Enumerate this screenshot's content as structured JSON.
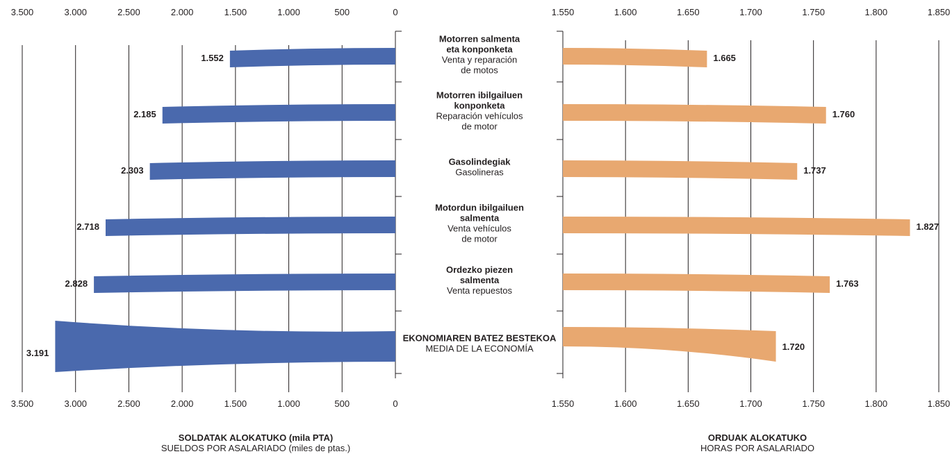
{
  "chart_data": [
    {
      "type": "bar",
      "orientation": "horizontal",
      "direction": "right-to-left",
      "xlabel_line1": "SOLDATAK ALOKATUKO (mila PTA)",
      "xlabel_line2": "SUELDOS POR ASALARIADO (miles de ptas.)",
      "xlim": [
        0,
        3500
      ],
      "ticks": [
        3500,
        3000,
        2500,
        2000,
        1500,
        1000,
        500,
        0
      ],
      "tick_labels": [
        "3.500",
        "3.000",
        "2.500",
        "2.000",
        "1.500",
        "1.000",
        "500",
        "0"
      ],
      "color": "#4a69ad",
      "values": [
        1552,
        2185,
        2303,
        2718,
        2828,
        3191
      ],
      "value_labels": [
        "1.552",
        "2.185",
        "2.303",
        "2.718",
        "2.828",
        "3.191"
      ]
    },
    {
      "type": "bar",
      "orientation": "horizontal",
      "direction": "left-to-right",
      "xlabel_line1": "ORDUAK ALOKATUKO",
      "xlabel_line2": "HORAS POR ASALARIADO",
      "xlim": [
        1550,
        1850
      ],
      "ticks": [
        1550,
        1600,
        1650,
        1700,
        1750,
        1800,
        1850
      ],
      "tick_labels": [
        "1.550",
        "1.600",
        "1.650",
        "1.700",
        "1.750",
        "1.800",
        "1.850"
      ],
      "color": "#e8a870",
      "values": [
        1665,
        1760,
        1737,
        1827,
        1763,
        1720
      ],
      "value_labels": [
        "1.665",
        "1.760",
        "1.737",
        "1.827",
        "1.763",
        "1.720"
      ]
    }
  ],
  "categories": [
    {
      "bold": [
        "Motorren salmenta",
        "eta konponketa"
      ],
      "normal": [
        "Venta y reparación",
        "de motos"
      ]
    },
    {
      "bold": [
        "Motorren ibilgailuen",
        "konponketa"
      ],
      "normal": [
        "Reparación vehículos",
        "de motor"
      ]
    },
    {
      "bold": [
        "Gasolindegiak"
      ],
      "normal": [
        "Gasolineras"
      ]
    },
    {
      "bold": [
        "Motordun ibilgailuen",
        "salmenta"
      ],
      "normal": [
        "Venta vehículos",
        "de motor"
      ]
    },
    {
      "bold": [
        "Ordezko piezen",
        "salmenta"
      ],
      "normal": [
        "Venta repuestos"
      ]
    },
    {
      "bold": [
        "EKONOMIAREN BATEZ BESTEKOA"
      ],
      "normal": [
        "MEDIA DE LA ECONOMÍA"
      ]
    }
  ]
}
